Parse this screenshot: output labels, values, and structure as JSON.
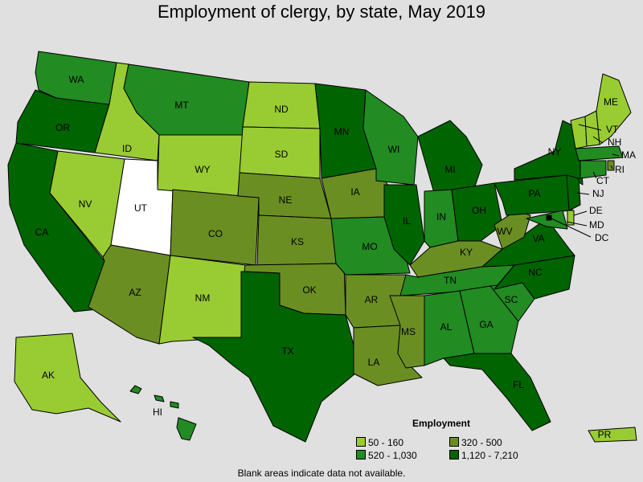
{
  "title": "Employment of clergy, by state, May 2019",
  "footnote": "Blank areas indicate data not available.",
  "legend": {
    "title": "Employment",
    "bins": [
      {
        "label": "50 - 160",
        "color": "#99cc33"
      },
      {
        "label": "320 - 500",
        "color": "#6b8e23"
      },
      {
        "label": "520 - 1,030",
        "color": "#228b22"
      },
      {
        "label": "1,120 - 7,210",
        "color": "#006400"
      }
    ]
  },
  "no_data_color": "#ffffff",
  "states": [
    {
      "abbr": "WA",
      "bin": 2
    },
    {
      "abbr": "OR",
      "bin": 3
    },
    {
      "abbr": "CA",
      "bin": 3
    },
    {
      "abbr": "ID",
      "bin": 0
    },
    {
      "abbr": "NV",
      "bin": 0
    },
    {
      "abbr": "UT",
      "bin": null
    },
    {
      "abbr": "AZ",
      "bin": 1
    },
    {
      "abbr": "MT",
      "bin": 2
    },
    {
      "abbr": "WY",
      "bin": 0
    },
    {
      "abbr": "CO",
      "bin": 1
    },
    {
      "abbr": "NM",
      "bin": 0
    },
    {
      "abbr": "ND",
      "bin": 0
    },
    {
      "abbr": "SD",
      "bin": 0
    },
    {
      "abbr": "NE",
      "bin": 1
    },
    {
      "abbr": "KS",
      "bin": 1
    },
    {
      "abbr": "OK",
      "bin": 1
    },
    {
      "abbr": "TX",
      "bin": 3
    },
    {
      "abbr": "MN",
      "bin": 3
    },
    {
      "abbr": "IA",
      "bin": 1
    },
    {
      "abbr": "MO",
      "bin": 2
    },
    {
      "abbr": "AR",
      "bin": 1
    },
    {
      "abbr": "LA",
      "bin": 1
    },
    {
      "abbr": "WI",
      "bin": 2
    },
    {
      "abbr": "IL",
      "bin": 3
    },
    {
      "abbr": "MI",
      "bin": 3
    },
    {
      "abbr": "IN",
      "bin": 2
    },
    {
      "abbr": "OH",
      "bin": 3
    },
    {
      "abbr": "KY",
      "bin": 1
    },
    {
      "abbr": "TN",
      "bin": 2
    },
    {
      "abbr": "MS",
      "bin": 1
    },
    {
      "abbr": "AL",
      "bin": 2
    },
    {
      "abbr": "GA",
      "bin": 2
    },
    {
      "abbr": "FL",
      "bin": 3
    },
    {
      "abbr": "SC",
      "bin": 2
    },
    {
      "abbr": "NC",
      "bin": 3
    },
    {
      "abbr": "VA",
      "bin": 3
    },
    {
      "abbr": "WV",
      "bin": 1
    },
    {
      "abbr": "PA",
      "bin": 3
    },
    {
      "abbr": "NY",
      "bin": 3
    },
    {
      "abbr": "VT",
      "bin": 0
    },
    {
      "abbr": "NH",
      "bin": 0
    },
    {
      "abbr": "ME",
      "bin": 0
    },
    {
      "abbr": "MA",
      "bin": 2
    },
    {
      "abbr": "RI",
      "bin": 1
    },
    {
      "abbr": "CT",
      "bin": 2
    },
    {
      "abbr": "NJ",
      "bin": 3
    },
    {
      "abbr": "DE",
      "bin": 0
    },
    {
      "abbr": "MD",
      "bin": 2
    },
    {
      "abbr": "DC",
      "bin": 3
    },
    {
      "abbr": "AK",
      "bin": 0
    },
    {
      "abbr": "HI",
      "bin": 2
    },
    {
      "abbr": "PR",
      "bin": 0
    }
  ]
}
